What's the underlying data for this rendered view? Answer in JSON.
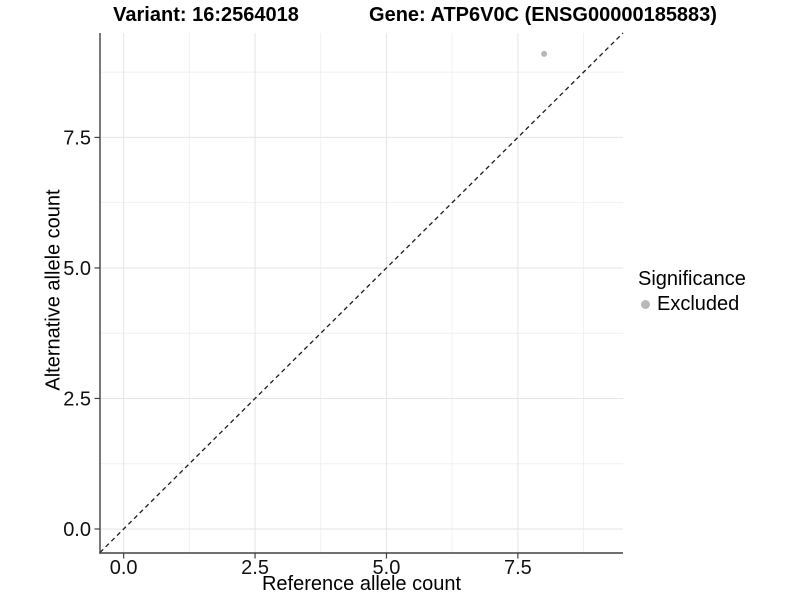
{
  "chart_data": {
    "type": "scatter",
    "title_left": "Variant: 16:2564018",
    "title_right": "Gene: ATP6V0C (ENSG00000185883)",
    "xlabel": "Reference allele count",
    "ylabel": "Alternative allele count",
    "xlim": [
      -0.45,
      9.5
    ],
    "ylim": [
      -0.46,
      9.5
    ],
    "x_tick_values": [
      0,
      2.5,
      5,
      7.5
    ],
    "x_tick_labels": [
      "0.0",
      "2.5",
      "5.0",
      "7.5"
    ],
    "y_tick_values": [
      0,
      2.5,
      5,
      7.5
    ],
    "y_tick_labels": [
      "0.0",
      "2.5",
      "5.0",
      "7.5"
    ],
    "minor_tick_values": [
      1.25,
      3.75,
      6.25,
      8.75
    ],
    "grid": "on",
    "legend_position": "right",
    "legend": {
      "title": "Significance",
      "items": [
        {
          "label": "Excluded",
          "color": "#b8b8b8"
        }
      ]
    },
    "series": [
      {
        "name": "Excluded",
        "color": "#b8b8b8",
        "marker_radius": 3,
        "points": [
          [
            8,
            9.1
          ]
        ]
      }
    ],
    "reference_line": {
      "kind": "identity",
      "slope": 1,
      "intercept": 0,
      "line_style": "dashed",
      "color": "#1a1a1a"
    },
    "style": {
      "grid_major": "#e5e5e5",
      "grid_minor": "#f1f1f1",
      "axis_color": "#404040",
      "tick_color": "#404040",
      "text_color": "#111111"
    }
  }
}
